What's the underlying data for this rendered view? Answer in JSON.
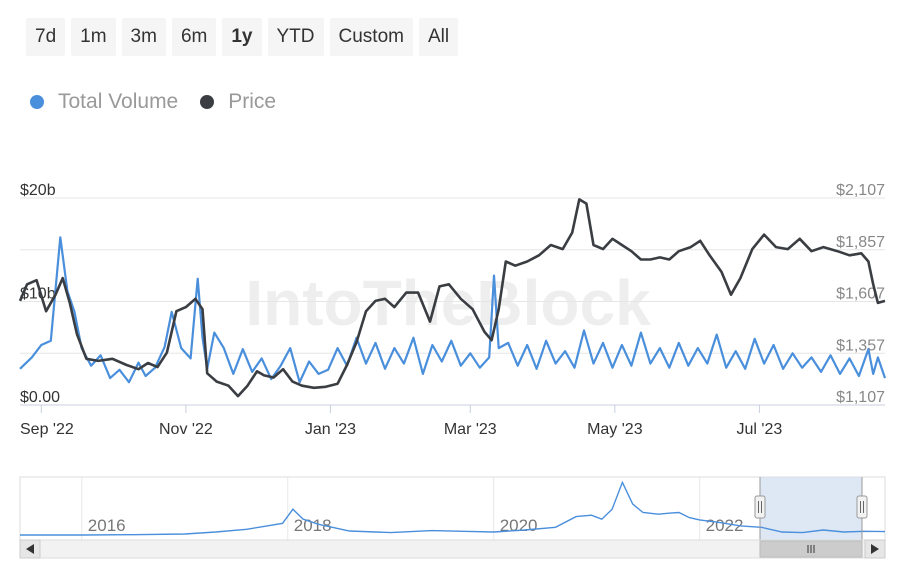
{
  "range_selector": {
    "buttons": [
      "7d",
      "1m",
      "3m",
      "6m",
      "1y",
      "YTD",
      "Custom",
      "All"
    ],
    "selected": "1y"
  },
  "legend": {
    "volume_label": "Total Volume",
    "price_label": "Price"
  },
  "watermark": "IntoTheBlock",
  "colors": {
    "volume": "#4a8fdc",
    "price": "#3a3d42",
    "grid": "#e6e6e6",
    "axis_text": "#888888",
    "navigator_fill": "#d6e2f3"
  },
  "chart_data": {
    "type": "line",
    "x_ticks": [
      "Sep '22",
      "Nov '22",
      "Jan '23",
      "Mar '23",
      "May '23",
      "Jul '23"
    ],
    "y_left_ticks": [
      "$0.00",
      "$10b",
      "$20b"
    ],
    "y_left_range": [
      0,
      20
    ],
    "y_right_ticks": [
      "$1,107",
      "$1,357",
      "$1,607",
      "$1,857",
      "$2,107"
    ],
    "y_right_range": [
      1107,
      2107
    ],
    "x_range": [
      "2022-08-23",
      "2023-08-23"
    ],
    "series": [
      {
        "name": "Total Volume",
        "axis": "left",
        "unit": "billions USD",
        "x": [
          "2022-08-23",
          "2022-08-28",
          "2022-09-01",
          "2022-09-05",
          "2022-09-09",
          "2022-09-12",
          "2022-09-15",
          "2022-09-18",
          "2022-09-22",
          "2022-09-26",
          "2022-09-30",
          "2022-10-04",
          "2022-10-08",
          "2022-10-12",
          "2022-10-15",
          "2022-10-19",
          "2022-10-23",
          "2022-10-26",
          "2022-10-30",
          "2022-11-03",
          "2022-11-06",
          "2022-11-08",
          "2022-11-10",
          "2022-11-13",
          "2022-11-17",
          "2022-11-21",
          "2022-11-25",
          "2022-11-29",
          "2022-12-03",
          "2022-12-07",
          "2022-12-11",
          "2022-12-15",
          "2022-12-19",
          "2022-12-23",
          "2022-12-27",
          "2022-12-31",
          "2023-01-04",
          "2023-01-08",
          "2023-01-12",
          "2023-01-16",
          "2023-01-20",
          "2023-01-24",
          "2023-01-28",
          "2023-02-01",
          "2023-02-05",
          "2023-02-09",
          "2023-02-13",
          "2023-02-17",
          "2023-02-21",
          "2023-02-25",
          "2023-03-01",
          "2023-03-05",
          "2023-03-09",
          "2023-03-11",
          "2023-03-13",
          "2023-03-17",
          "2023-03-21",
          "2023-03-25",
          "2023-03-29",
          "2023-04-02",
          "2023-04-06",
          "2023-04-10",
          "2023-04-14",
          "2023-04-18",
          "2023-04-22",
          "2023-04-26",
          "2023-04-30",
          "2023-05-04",
          "2023-05-08",
          "2023-05-12",
          "2023-05-16",
          "2023-05-20",
          "2023-05-24",
          "2023-05-28",
          "2023-06-01",
          "2023-06-05",
          "2023-06-09",
          "2023-06-13",
          "2023-06-17",
          "2023-06-21",
          "2023-06-25",
          "2023-06-29",
          "2023-07-03",
          "2023-07-07",
          "2023-07-11",
          "2023-07-15",
          "2023-07-19",
          "2023-07-23",
          "2023-07-27",
          "2023-07-31",
          "2023-08-04",
          "2023-08-08",
          "2023-08-12",
          "2023-08-16",
          "2023-08-18",
          "2023-08-20",
          "2023-08-23"
        ],
        "y": [
          3.5,
          4.6,
          5.8,
          6.2,
          16.2,
          11.0,
          9.0,
          5.5,
          3.8,
          4.8,
          2.6,
          3.4,
          2.2,
          4.1,
          2.8,
          3.6,
          5.6,
          9.0,
          5.5,
          4.5,
          12.2,
          6.5,
          3.5,
          7.0,
          5.5,
          3.0,
          5.4,
          3.2,
          4.5,
          2.5,
          3.8,
          5.5,
          2.2,
          4.2,
          3.0,
          3.4,
          5.5,
          3.8,
          6.5,
          4.0,
          6.0,
          3.5,
          5.5,
          4.0,
          6.5,
          3.0,
          5.8,
          4.2,
          6.2,
          3.8,
          5.0,
          3.6,
          4.6,
          12.5,
          5.5,
          6.0,
          3.8,
          5.8,
          3.5,
          6.2,
          4.0,
          5.2,
          3.6,
          7.2,
          4.0,
          6.0,
          3.6,
          5.8,
          3.8,
          7.0,
          4.0,
          5.5,
          3.6,
          6.0,
          3.8,
          5.5,
          4.0,
          6.8,
          3.6,
          5.2,
          3.5,
          6.4,
          4.0,
          5.8,
          3.5,
          5.0,
          3.6,
          4.6,
          3.2,
          4.8,
          3.0,
          4.5,
          2.8,
          5.4,
          3.0,
          4.6,
          2.6
        ]
      },
      {
        "name": "Price",
        "axis": "right",
        "unit": "USD",
        "x": [
          "2022-08-23",
          "2022-08-26",
          "2022-08-30",
          "2022-09-03",
          "2022-09-07",
          "2022-09-10",
          "2022-09-13",
          "2022-09-16",
          "2022-09-20",
          "2022-09-25",
          "2022-10-01",
          "2022-10-07",
          "2022-10-12",
          "2022-10-16",
          "2022-10-20",
          "2022-10-24",
          "2022-10-28",
          "2022-11-01",
          "2022-11-05",
          "2022-11-08",
          "2022-11-10",
          "2022-11-14",
          "2022-11-19",
          "2022-11-23",
          "2022-11-27",
          "2022-12-01",
          "2022-12-04",
          "2022-12-08",
          "2022-12-12",
          "2022-12-16",
          "2022-12-20",
          "2022-12-25",
          "2022-12-30",
          "2023-01-04",
          "2023-01-08",
          "2023-01-12",
          "2023-01-16",
          "2023-01-20",
          "2023-01-24",
          "2023-01-28",
          "2023-02-02",
          "2023-02-07",
          "2023-02-12",
          "2023-02-16",
          "2023-02-20",
          "2023-02-25",
          "2023-03-02",
          "2023-03-07",
          "2023-03-10",
          "2023-03-13",
          "2023-03-16",
          "2023-03-20",
          "2023-03-25",
          "2023-03-30",
          "2023-04-04",
          "2023-04-09",
          "2023-04-13",
          "2023-04-16",
          "2023-04-19",
          "2023-04-22",
          "2023-04-26",
          "2023-04-30",
          "2023-05-04",
          "2023-05-08",
          "2023-05-12",
          "2023-05-16",
          "2023-05-20",
          "2023-05-24",
          "2023-05-28",
          "2023-06-02",
          "2023-06-06",
          "2023-06-10",
          "2023-06-15",
          "2023-06-19",
          "2023-06-23",
          "2023-06-28",
          "2023-07-03",
          "2023-07-08",
          "2023-07-13",
          "2023-07-18",
          "2023-07-23",
          "2023-07-28",
          "2023-08-03",
          "2023-08-08",
          "2023-08-13",
          "2023-08-16",
          "2023-08-18",
          "2023-08-20",
          "2023-08-23"
        ],
        "y": [
          1610,
          1690,
          1710,
          1560,
          1640,
          1720,
          1600,
          1450,
          1330,
          1320,
          1330,
          1300,
          1280,
          1310,
          1290,
          1360,
          1560,
          1580,
          1620,
          1570,
          1260,
          1220,
          1200,
          1150,
          1200,
          1270,
          1250,
          1240,
          1280,
          1220,
          1200,
          1190,
          1195,
          1210,
          1300,
          1410,
          1560,
          1610,
          1620,
          1580,
          1650,
          1650,
          1510,
          1680,
          1690,
          1620,
          1570,
          1460,
          1420,
          1570,
          1800,
          1780,
          1800,
          1830,
          1880,
          1860,
          1940,
          2100,
          2080,
          1880,
          1860,
          1910,
          1880,
          1850,
          1810,
          1810,
          1820,
          1810,
          1850,
          1870,
          1900,
          1830,
          1750,
          1640,
          1720,
          1860,
          1930,
          1870,
          1860,
          1910,
          1850,
          1870,
          1850,
          1830,
          1840,
          1800,
          1690,
          1600,
          1610
        ]
      }
    ],
    "navigator": {
      "x_labels": [
        "2016",
        "2018",
        "2020",
        "2022"
      ],
      "x_range": [
        2015.4,
        2023.8
      ],
      "selected_range": [
        "2022-08-23",
        "2023-08-23"
      ],
      "series": {
        "x": [
          2015.4,
          2016.0,
          2016.5,
          2017.0,
          2017.3,
          2017.6,
          2017.8,
          2017.95,
          2018.05,
          2018.15,
          2018.3,
          2018.6,
          2019.0,
          2019.4,
          2019.7,
          2020.0,
          2020.3,
          2020.6,
          2020.8,
          2020.95,
          2021.05,
          2021.15,
          2021.25,
          2021.35,
          2021.45,
          2021.6,
          2021.7,
          2021.8,
          2021.9,
          2022.0,
          2022.2,
          2022.4,
          2022.6,
          2022.8,
          2023.0,
          2023.2,
          2023.4,
          2023.6,
          2023.8
        ],
        "y": [
          0.3,
          0.3,
          0.4,
          0.6,
          1.2,
          2.0,
          3.0,
          3.8,
          8.0,
          5.0,
          3.5,
          1.5,
          1.0,
          1.6,
          1.4,
          1.2,
          1.8,
          2.6,
          5.8,
          6.2,
          5.0,
          8.0,
          16.0,
          9.5,
          7.0,
          6.5,
          6.8,
          7.0,
          5.5,
          4.8,
          4.0,
          3.0,
          2.6,
          1.2,
          1.0,
          1.8,
          1.2,
          1.4,
          1.3
        ]
      }
    }
  }
}
